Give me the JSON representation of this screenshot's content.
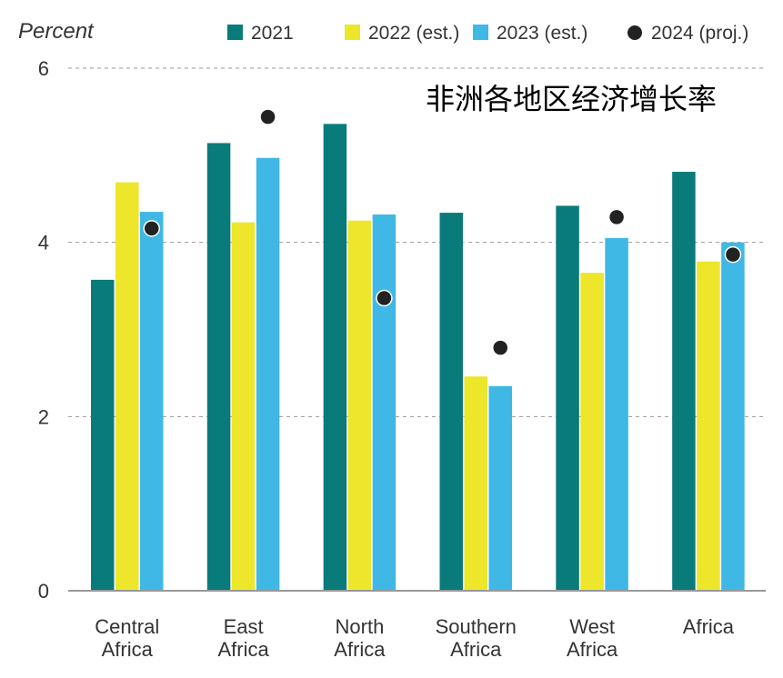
{
  "chart_data": {
    "type": "bar",
    "title": "非洲各地区经济增长率",
    "ylabel": "Percent",
    "xlabel": "",
    "ylim": [
      0,
      6
    ],
    "yticks": [
      "0",
      "2",
      "4",
      "6"
    ],
    "grid": true,
    "legend_position": "top-right",
    "categories": [
      [
        "Central",
        "Africa"
      ],
      [
        "East",
        "Africa"
      ],
      [
        "North",
        "Africa"
      ],
      [
        "Southern",
        "Africa"
      ],
      [
        "West",
        "Africa"
      ],
      [
        "Africa"
      ]
    ],
    "series": [
      {
        "name": "2021",
        "kind": "bar",
        "color": "#0a7b7b",
        "values": [
          3.57,
          5.14,
          5.36,
          4.34,
          4.42,
          4.81
        ]
      },
      {
        "name": "2022 (est.)",
        "kind": "bar",
        "color": "#ede62a",
        "values": [
          4.69,
          4.23,
          4.25,
          2.46,
          3.65,
          3.78
        ]
      },
      {
        "name": "2023 (est.)",
        "kind": "bar",
        "color": "#3fb8e6",
        "values": [
          4.35,
          4.97,
          4.32,
          2.35,
          4.05,
          4.0
        ]
      },
      {
        "name": "2024 (proj.)",
        "kind": "point",
        "color": "#222222",
        "values": [
          4.16,
          5.44,
          3.36,
          2.79,
          4.29,
          3.86
        ]
      }
    ]
  }
}
